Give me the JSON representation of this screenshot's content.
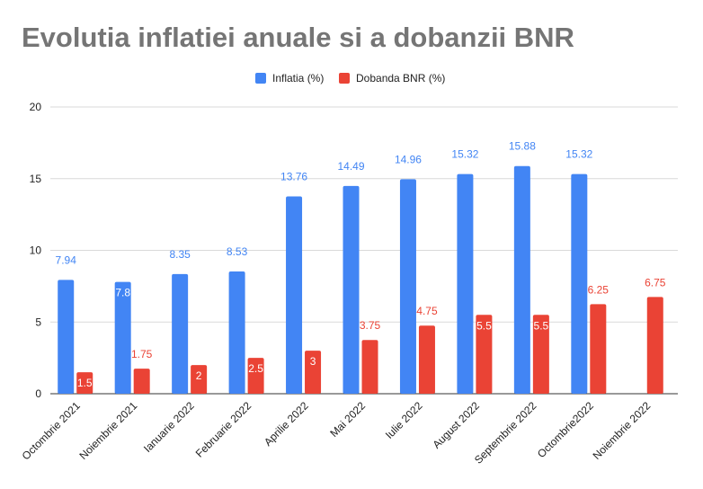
{
  "chart_data": {
    "type": "bar",
    "title": "Evolutia inflatiei anuale si a dobanzii BNR",
    "categories": [
      "Octombrie 2021",
      "Noiembrie 2021",
      "Ianuarie 2022",
      "Februarie 2022",
      "Aprilie 2022",
      "Mai 2022",
      "Iulie 2022",
      "August 2022",
      "Septembrie 2022",
      "Octombrie2022",
      "Noiembrie 2022"
    ],
    "series": [
      {
        "name": "Inflatia (%)",
        "color": "#4285F4",
        "values": [
          7.94,
          7.8,
          8.35,
          8.53,
          13.76,
          14.49,
          14.96,
          15.32,
          15.88,
          15.32,
          null
        ]
      },
      {
        "name": "Dobanda BNR (%)",
        "color": "#EA4335",
        "values": [
          1.5,
          1.75,
          2,
          2.5,
          3,
          3.75,
          4.75,
          5.5,
          5.5,
          6.25,
          6.75
        ]
      }
    ],
    "ylim": [
      0,
      20
    ],
    "yticks": [
      0,
      5,
      10,
      15,
      20
    ],
    "grid": true,
    "legend": "top-center"
  }
}
